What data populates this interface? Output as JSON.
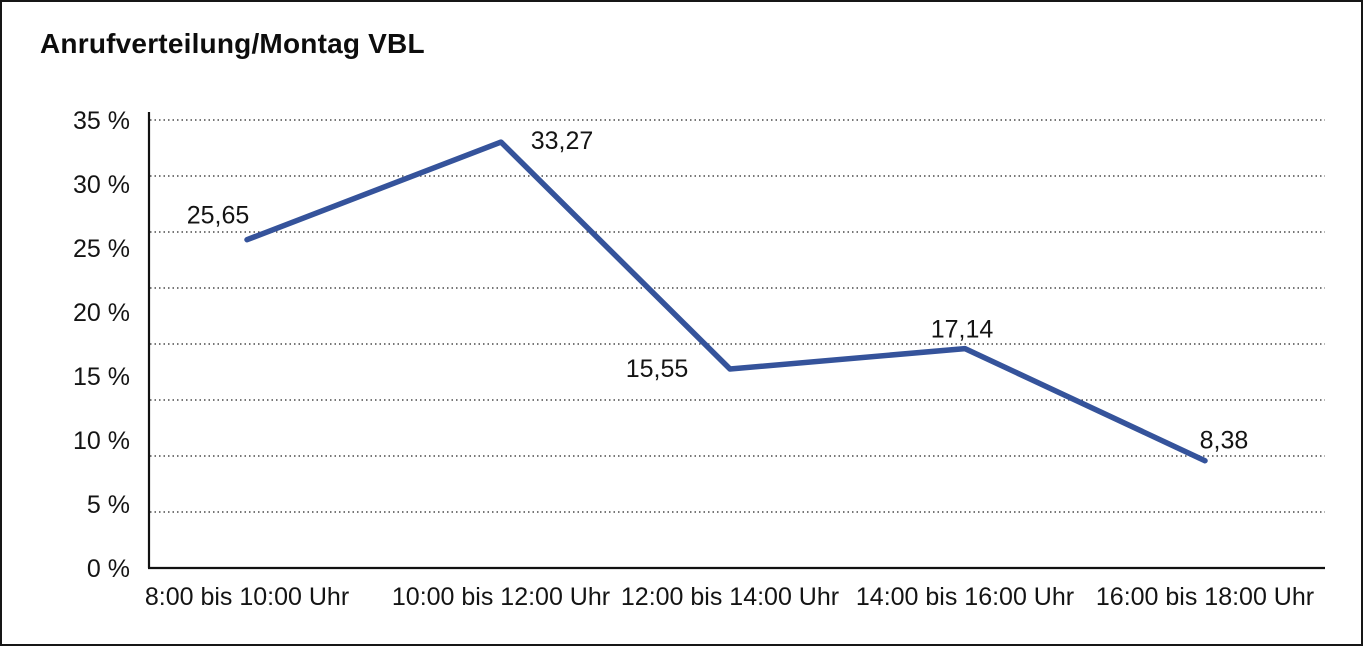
{
  "title": "Anrufverteilung/Montag VBL",
  "chart_data": {
    "type": "line",
    "title": "Anrufverteilung/Montag VBL",
    "categories": [
      "8:00 bis 10:00 Uhr",
      "10:00 bis 12:00 Uhr",
      "12:00 bis 14:00 Uhr",
      "14:00 bis 16:00 Uhr",
      "16:00 bis 18:00 Uhr"
    ],
    "values": [
      25.65,
      33.27,
      15.55,
      17.14,
      8.38
    ],
    "value_labels": [
      "25,65",
      "33,27",
      "15,55",
      "17,14",
      "8,38"
    ],
    "yticks": [
      "35 %",
      "30 %",
      "25 %",
      "20 %",
      "15 %",
      "10 %",
      "5 %",
      "0 %"
    ],
    "ylim": [
      0,
      35
    ],
    "xlabel": "",
    "ylabel": "",
    "legend": "none",
    "grid": "horizontal-dotted",
    "line_color": "#35539B",
    "axis_color": "#111111",
    "grid_color": "#4a4a4a",
    "text_color": "#141414"
  }
}
